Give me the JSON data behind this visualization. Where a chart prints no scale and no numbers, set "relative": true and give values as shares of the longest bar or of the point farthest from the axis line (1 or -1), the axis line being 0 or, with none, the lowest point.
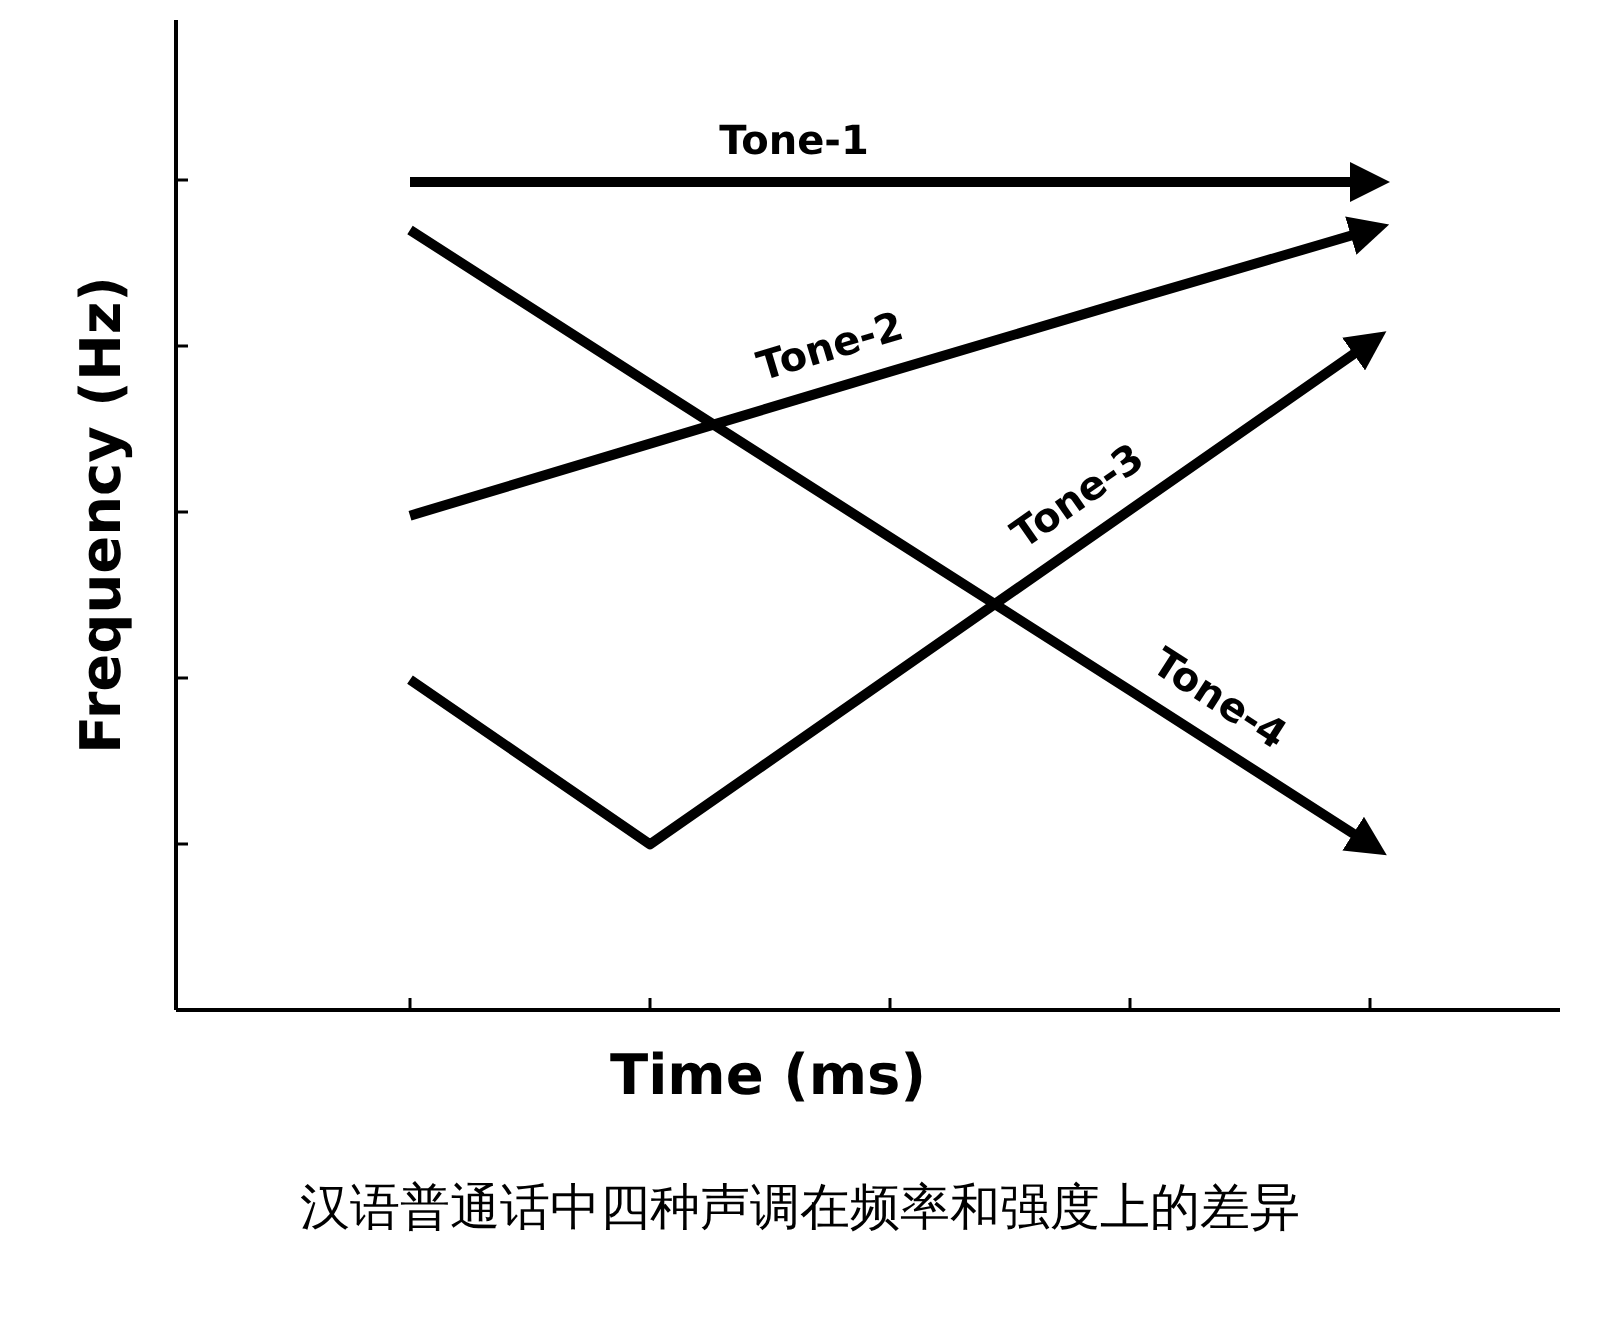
{
  "chart_data": {
    "type": "line",
    "relative": true,
    "xlabel": "Time (ms)",
    "ylabel": "Frequency (Hz)",
    "categories": [
      null,
      null,
      null,
      null,
      null
    ],
    "series": [
      {
        "name": "Tone-1",
        "color": "#000000",
        "values": [
          1,
          1,
          1,
          1,
          1
        ]
      },
      {
        "name": "Tone-2",
        "color": "#000000",
        "values": [
          0.597,
          0.684,
          0.771,
          0.857,
          0.942
        ]
      },
      {
        "name": "Tone-3",
        "color": "#000000",
        "values": [
          0.399,
          0.2,
          0.402,
          0.604,
          0.806
        ]
      },
      {
        "name": "Tone-4",
        "color": "#000000",
        "values": [
          0.942,
          0.756,
          0.571,
          0.386,
          0.2
        ]
      }
    ],
    "marker": "none",
    "line_style": "solid",
    "grid": false,
    "legend": false,
    "annotations": [
      "汉语普通话中四种声调在频率和强度上的差异"
    ]
  }
}
